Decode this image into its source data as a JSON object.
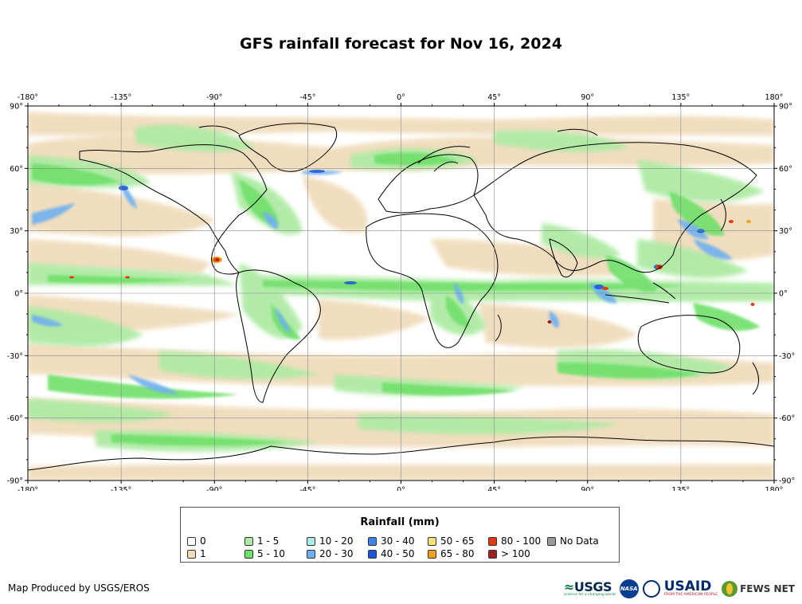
{
  "title": "GFS rainfall forecast for Nov 16, 2024",
  "map": {
    "lon_ticks": [
      -180,
      -135,
      -90,
      -45,
      0,
      45,
      90,
      135,
      180
    ],
    "lon_labels": [
      "-180°",
      "-135°",
      "-90°",
      "-45°",
      "0°",
      "45°",
      "90°",
      "135°",
      "180°"
    ],
    "lat_ticks": [
      90,
      60,
      30,
      0,
      -30,
      -60,
      -90
    ],
    "lat_labels": [
      "90°",
      "60°",
      "30°",
      "0°",
      "-30°",
      "-60°",
      "-90°"
    ],
    "lon_range": [
      -180,
      180
    ],
    "lat_range": [
      -90,
      90
    ],
    "grid": true
  },
  "legend": {
    "title": "Rainfall (mm)",
    "items": [
      {
        "label": "0",
        "color": "#ffffff"
      },
      {
        "label": "1",
        "color": "#f0dcbb"
      },
      {
        "label": "1 - 5",
        "color": "#aeeaa4"
      },
      {
        "label": "5 - 10",
        "color": "#6fe06a"
      },
      {
        "label": "10 - 20",
        "color": "#a9ecec"
      },
      {
        "label": "20 - 30",
        "color": "#6fb0f0"
      },
      {
        "label": "30 - 40",
        "color": "#3a86e8"
      },
      {
        "label": "40 - 50",
        "color": "#1b55d9"
      },
      {
        "label": "50 - 65",
        "color": "#f7e07a"
      },
      {
        "label": "65 - 80",
        "color": "#f3a01e"
      },
      {
        "label": "80 - 100",
        "color": "#e8380f"
      },
      {
        "label": "> 100",
        "color": "#9e1f1f"
      },
      {
        "label": "No Data",
        "color": "#9a9a9a"
      }
    ]
  },
  "credit": "Map Produced by USGS/EROS",
  "logos": {
    "usgs": "USGS",
    "usgs_tagline": "science for a changing world",
    "nasa": "NASA",
    "usaid": "USAID",
    "usaid_tagline": "FROM THE AMERICAN PEOPLE",
    "fews": "FEWS NET"
  }
}
